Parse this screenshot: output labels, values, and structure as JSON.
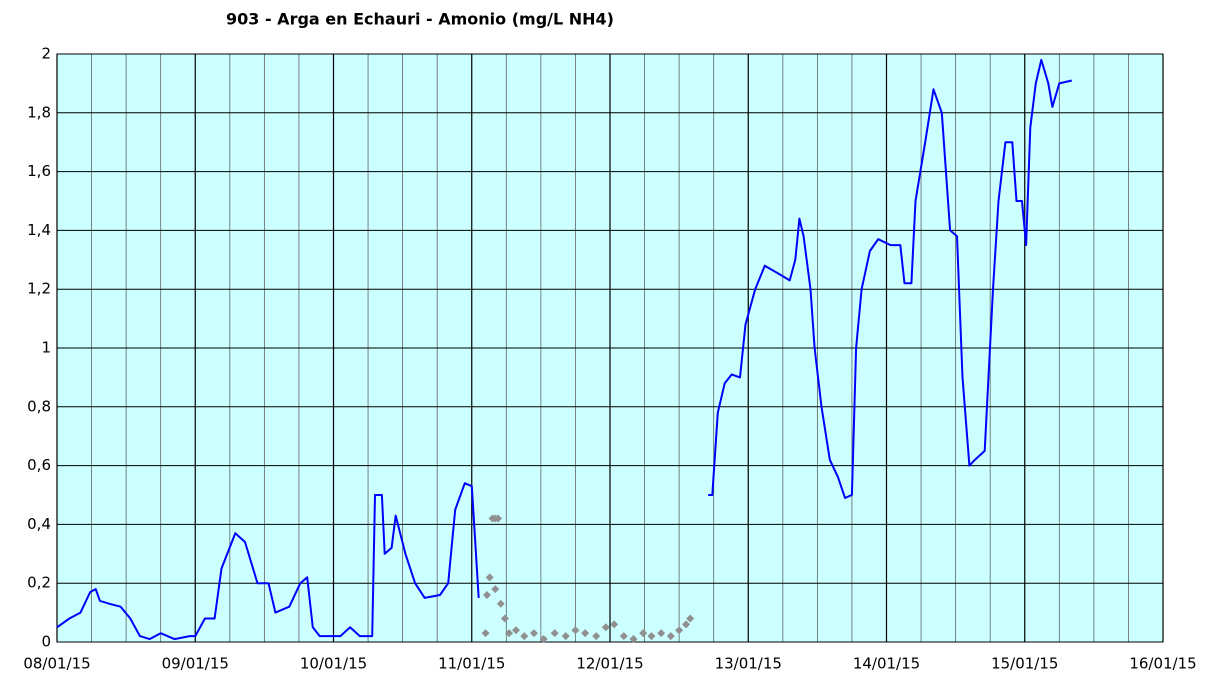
{
  "chart_data": {
    "type": "line",
    "title": "903 - Arga en Echauri - Amonio (mg/L NH4)",
    "series": [
      {
        "color": "#0000ff",
        "mode": "line",
        "x": [
          0,
          0.09,
          0.17,
          0.24,
          0.28,
          0.31,
          0.38,
          0.46,
          0.53,
          0.6,
          0.67,
          0.75,
          0.85,
          0.96,
          1.0,
          1.07,
          1.14,
          1.19,
          1.29,
          1.36,
          1.45,
          1.53,
          1.58,
          1.68,
          1.76,
          1.81,
          1.85,
          1.9,
          2.05,
          2.12,
          2.19,
          2.28,
          2.3,
          2.35,
          2.37,
          2.42,
          2.45,
          2.52,
          2.59,
          2.66,
          2.77,
          2.83,
          2.88,
          2.95,
          3.0,
          3.05,
          3.9,
          4.71,
          4.74,
          4.78,
          4.83,
          4.88,
          4.94,
          4.98,
          5.05,
          5.12,
          5.23,
          5.3,
          5.34,
          5.37,
          5.4,
          5.45,
          5.48,
          5.53,
          5.59,
          5.65,
          5.7,
          5.75,
          5.78,
          5.82,
          5.88,
          5.94,
          6.03,
          6.1,
          6.13,
          6.18,
          6.21,
          6.28,
          6.34,
          6.4,
          6.46,
          6.51,
          6.55,
          6.6,
          6.64,
          6.71,
          6.77,
          6.81,
          6.86,
          6.91,
          6.94,
          6.98,
          7.01,
          7.04,
          7.08,
          7.12,
          7.17,
          7.2,
          7.25,
          7.34
        ],
        "values": [
          0.05,
          0.08,
          0.1,
          0.17,
          0.18,
          0.14,
          0.13,
          0.12,
          0.08,
          0.02,
          0.01,
          0.03,
          0.01,
          0.02,
          0.02,
          0.08,
          0.08,
          0.25,
          0.37,
          0.34,
          0.2,
          0.2,
          0.1,
          0.12,
          0.2,
          0.22,
          0.05,
          0.02,
          0.02,
          0.05,
          0.02,
          0.02,
          0.5,
          0.5,
          0.3,
          0.32,
          0.43,
          0.3,
          0.2,
          0.15,
          0.16,
          0.2,
          0.45,
          0.54,
          0.53,
          0.15,
          null,
          0.5,
          0.5,
          0.78,
          0.88,
          0.91,
          0.9,
          1.08,
          1.2,
          1.28,
          1.25,
          1.23,
          1.3,
          1.44,
          1.38,
          1.2,
          1.0,
          0.8,
          0.62,
          0.56,
          0.49,
          0.5,
          1.0,
          1.2,
          1.33,
          1.37,
          1.35,
          1.35,
          1.22,
          1.22,
          1.5,
          1.7,
          1.88,
          1.8,
          1.4,
          1.38,
          0.9,
          0.6,
          0.62,
          0.65,
          1.2,
          1.5,
          1.7,
          1.7,
          1.5,
          1.5,
          1.35,
          1.75,
          1.9,
          1.98,
          1.9,
          1.82,
          1.9,
          1.91
        ]
      },
      {
        "color": "#909090",
        "mode": "points",
        "x": [
          3.1,
          3.11,
          3.13,
          3.15,
          3.17,
          3.19,
          3.17,
          3.21,
          3.24,
          3.27,
          3.32,
          3.38,
          3.45,
          3.52,
          3.6,
          3.68,
          3.75,
          3.82,
          3.9,
          3.97,
          4.03,
          4.1,
          4.17,
          4.24,
          4.3,
          4.37,
          4.44,
          4.5,
          4.55,
          4.58
        ],
        "values": [
          0.03,
          0.16,
          0.22,
          0.42,
          0.42,
          0.42,
          0.18,
          0.13,
          0.08,
          0.03,
          0.04,
          0.02,
          0.03,
          0.01,
          0.03,
          0.02,
          0.04,
          0.03,
          0.02,
          0.05,
          0.06,
          0.02,
          0.01,
          0.03,
          0.02,
          0.03,
          0.02,
          0.04,
          0.06,
          0.08
        ]
      }
    ],
    "xlim": [
      0,
      8
    ],
    "xticks": [
      {
        "value": 0,
        "label": "08/01/15"
      },
      {
        "value": 1,
        "label": "09/01/15"
      },
      {
        "value": 2,
        "label": "10/01/15"
      },
      {
        "value": 3,
        "label": "11/01/15"
      },
      {
        "value": 4,
        "label": "12/01/15"
      },
      {
        "value": 5,
        "label": "13/01/15"
      },
      {
        "value": 6,
        "label": "14/01/15"
      },
      {
        "value": 7,
        "label": "15/01/15"
      },
      {
        "value": 8,
        "label": "16/01/15"
      }
    ],
    "ylim": [
      0,
      2
    ],
    "yticks": [
      0,
      {
        "value": 0.2,
        "label": "0,2"
      },
      {
        "value": 0.4,
        "label": "0,4"
      },
      {
        "value": 0.6,
        "label": "0,6"
      },
      {
        "value": 0.8,
        "label": "0,8"
      },
      1,
      {
        "value": 1.2,
        "label": "1,2"
      },
      {
        "value": 1.4,
        "label": "1,4"
      },
      {
        "value": 1.6,
        "label": "1,6"
      },
      {
        "value": 1.8,
        "label": "1,8"
      },
      2
    ],
    "grid": true,
    "background": "#ccffff"
  }
}
